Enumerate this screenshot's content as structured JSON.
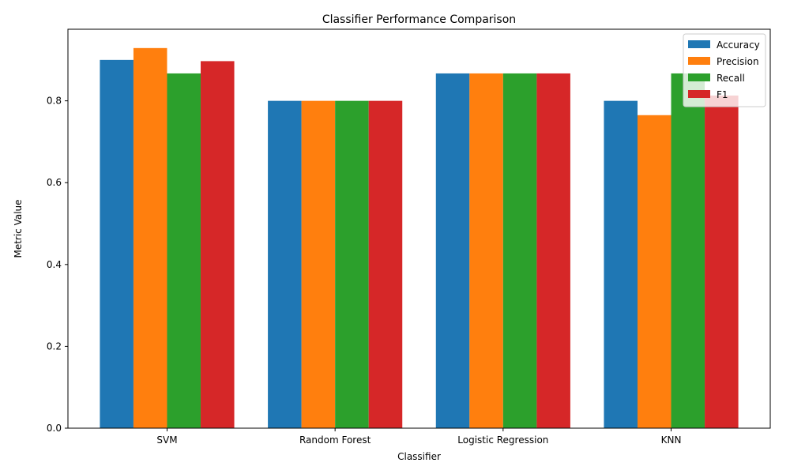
{
  "chart_data": {
    "type": "bar",
    "title": "Classifier Performance Comparison",
    "xlabel": "Classifier",
    "ylabel": "Metric Value",
    "categories": [
      "SVM",
      "Random Forest",
      "Logistic Regression",
      "KNN"
    ],
    "series": [
      {
        "name": "Accuracy",
        "color": "#1f77b4",
        "values": [
          0.9,
          0.8,
          0.867,
          0.8
        ]
      },
      {
        "name": "Precision",
        "color": "#ff7f0e",
        "values": [
          0.929,
          0.8,
          0.867,
          0.765
        ]
      },
      {
        "name": "Recall",
        "color": "#2ca02c",
        "values": [
          0.867,
          0.8,
          0.867,
          0.867
        ]
      },
      {
        "name": "F1",
        "color": "#d62728",
        "values": [
          0.897,
          0.8,
          0.867,
          0.813
        ]
      }
    ],
    "ylim": [
      0,
      0.975
    ],
    "yticks": [
      0.0,
      0.2,
      0.4,
      0.6,
      0.8
    ],
    "ytick_labels": [
      "0.0",
      "0.2",
      "0.4",
      "0.6",
      "0.8"
    ],
    "grid": false,
    "legend_position": "top-right"
  }
}
